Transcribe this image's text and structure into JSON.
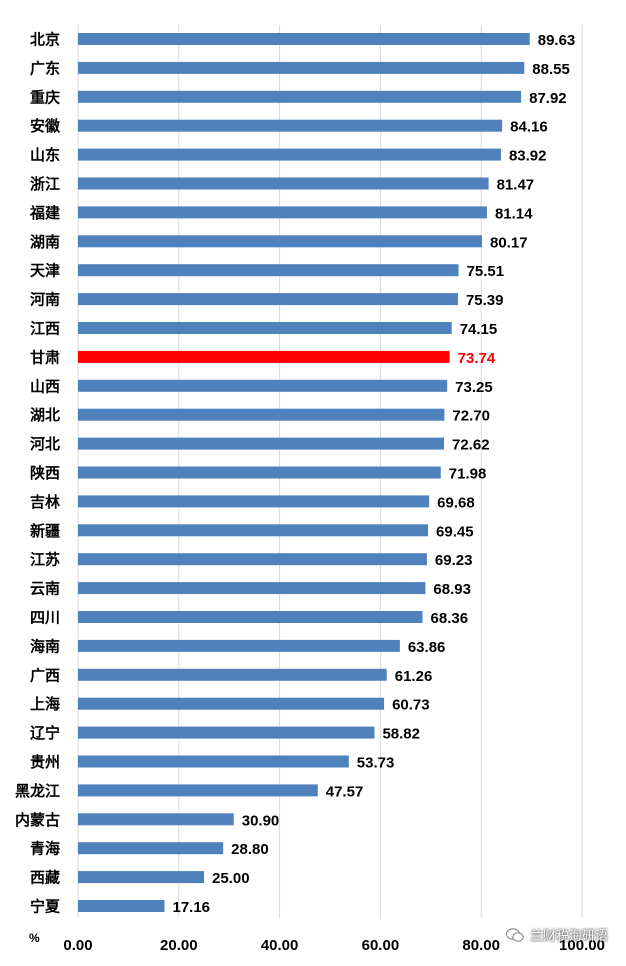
{
  "chart_data": {
    "type": "bar",
    "orientation": "horizontal",
    "categories": [
      "北京",
      "广东",
      "重庆",
      "安徽",
      "山东",
      "浙江",
      "福建",
      "湖南",
      "天津",
      "河南",
      "江西",
      "甘肃",
      "山西",
      "湖北",
      "河北",
      "陕西",
      "吉林",
      "新疆",
      "江苏",
      "云南",
      "四川",
      "海南",
      "广西",
      "上海",
      "辽宁",
      "贵州",
      "黑龙江",
      "内蒙古",
      "青海",
      "西藏",
      "宁夏"
    ],
    "values": [
      89.63,
      88.55,
      87.92,
      84.16,
      83.92,
      81.47,
      81.14,
      80.17,
      75.51,
      75.39,
      74.15,
      73.74,
      73.25,
      72.7,
      72.62,
      71.98,
      69.68,
      69.45,
      69.23,
      68.93,
      68.36,
      63.86,
      61.26,
      60.73,
      58.82,
      53.73,
      47.57,
      30.9,
      28.8,
      25.0,
      17.16
    ],
    "value_labels": [
      "89.63",
      "88.55",
      "87.92",
      "84.16",
      "83.92",
      "81.47",
      "81.14",
      "80.17",
      "75.51",
      "75.39",
      "74.15",
      "73.74",
      "73.25",
      "72.70",
      "72.62",
      "71.98",
      "69.68",
      "69.45",
      "69.23",
      "68.93",
      "68.36",
      "63.86",
      "61.26",
      "60.73",
      "58.82",
      "53.73",
      "47.57",
      "30.90",
      "28.80",
      "25.00",
      "17.16"
    ],
    "xlim": [
      0,
      100
    ],
    "x_ticks": [
      "0.00",
      "20.00",
      "40.00",
      "60.00",
      "80.00",
      "100.00"
    ],
    "x_unit": "%",
    "grid": "vertical",
    "highlight_category": "甘肃",
    "colors": {
      "bar": "#4F81BD",
      "highlight": "#FF0000",
      "grid": "#D9D9D9"
    }
  },
  "watermark": {
    "text": "兰财税海研语",
    "icon": "wechat-icon"
  }
}
